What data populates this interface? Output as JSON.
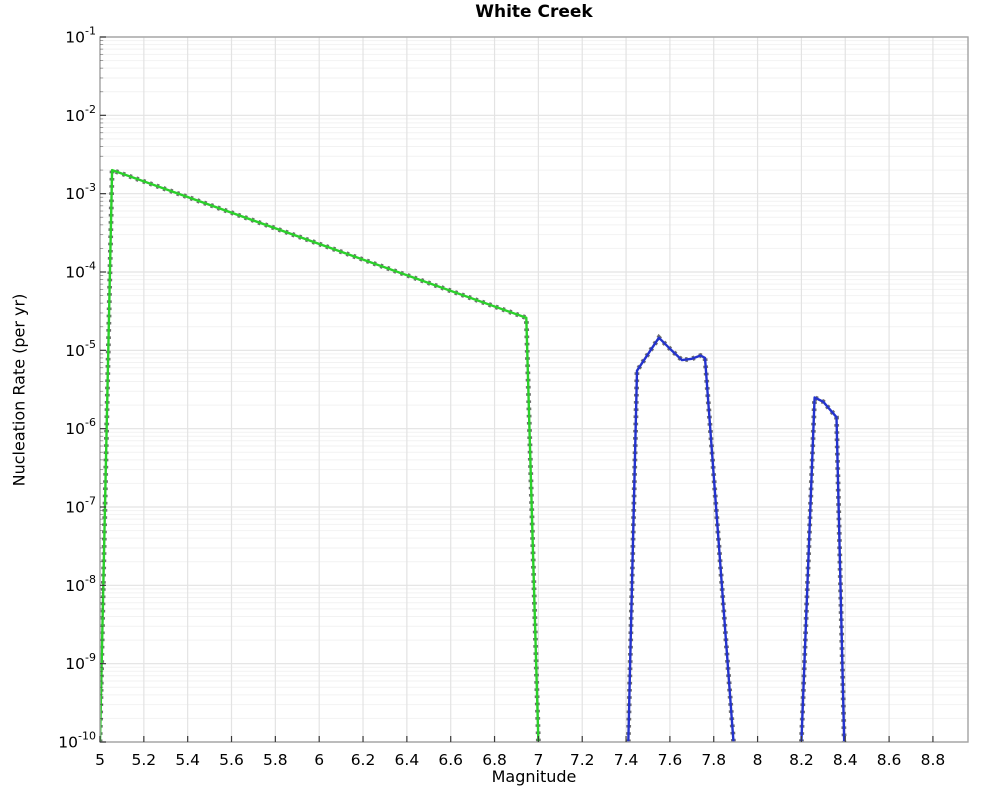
{
  "chart_data": {
    "type": "line",
    "title": "White Creek",
    "xlabel": "Magnitude",
    "ylabel": "Nucleation Rate (per yr)",
    "x_axis": {
      "min": 5.0,
      "max": 8.96,
      "tick_step": 0.2,
      "tick_values": [
        5,
        5.2,
        5.4,
        5.6,
        5.8,
        6,
        6.2,
        6.4,
        6.6,
        6.8,
        7,
        7.2,
        7.4,
        7.6,
        7.8,
        8,
        8.2,
        8.4,
        8.6,
        8.8
      ],
      "tick_labels": [
        "5",
        "5.2",
        "5.4",
        "5.6",
        "5.8",
        "6",
        "6.2",
        "6.4",
        "6.6",
        "6.8",
        "7",
        "7.2",
        "7.4",
        "7.6",
        "7.8",
        "8",
        "8.2",
        "8.4",
        "8.6",
        "8.8"
      ]
    },
    "y_axis": {
      "scale": "log",
      "max_exp": -1,
      "min_exp": -10,
      "tick_base": "10",
      "tick_exponents": [
        "-1",
        "-2",
        "-3",
        "-4",
        "-5",
        "-6",
        "-7",
        "-8",
        "-9",
        "-10"
      ]
    },
    "grid": {
      "on": true,
      "major_color": "#e3e3e3",
      "minor_color": "#f2f2f2",
      "frame_color": "#a3a3a3",
      "tick_color": "#3a3a3a"
    },
    "series": [
      {
        "id": "green",
        "color": "#2bd02b",
        "marker_color": "#6f6f6f",
        "segments": [
          [
            [
              5.0,
              1e-10
            ],
            [
              5.055,
              0.002
            ],
            [
              6.945,
              2.6e-05
            ],
            [
              7.0,
              1e-10
            ]
          ]
        ]
      },
      {
        "id": "blue",
        "color": "#2433cc",
        "marker_color": "#6f6f6f",
        "segments": [
          [
            [
              7.41,
              1e-10
            ],
            [
              7.45,
              5.5e-06
            ],
            [
              7.55,
              1.45e-05
            ],
            [
              7.6,
              1.05e-05
            ],
            [
              7.655,
              7.5e-06
            ],
            [
              7.7,
              7.8e-06
            ],
            [
              7.74,
              8.6e-06
            ],
            [
              7.76,
              8e-06
            ],
            [
              7.89,
              1e-10
            ]
          ],
          [
            [
              8.2,
              1e-10
            ],
            [
              8.26,
              2.5e-06
            ],
            [
              8.3,
              2.2e-06
            ],
            [
              8.36,
              1.4e-06
            ],
            [
              8.395,
              1e-10
            ]
          ]
        ]
      }
    ]
  }
}
